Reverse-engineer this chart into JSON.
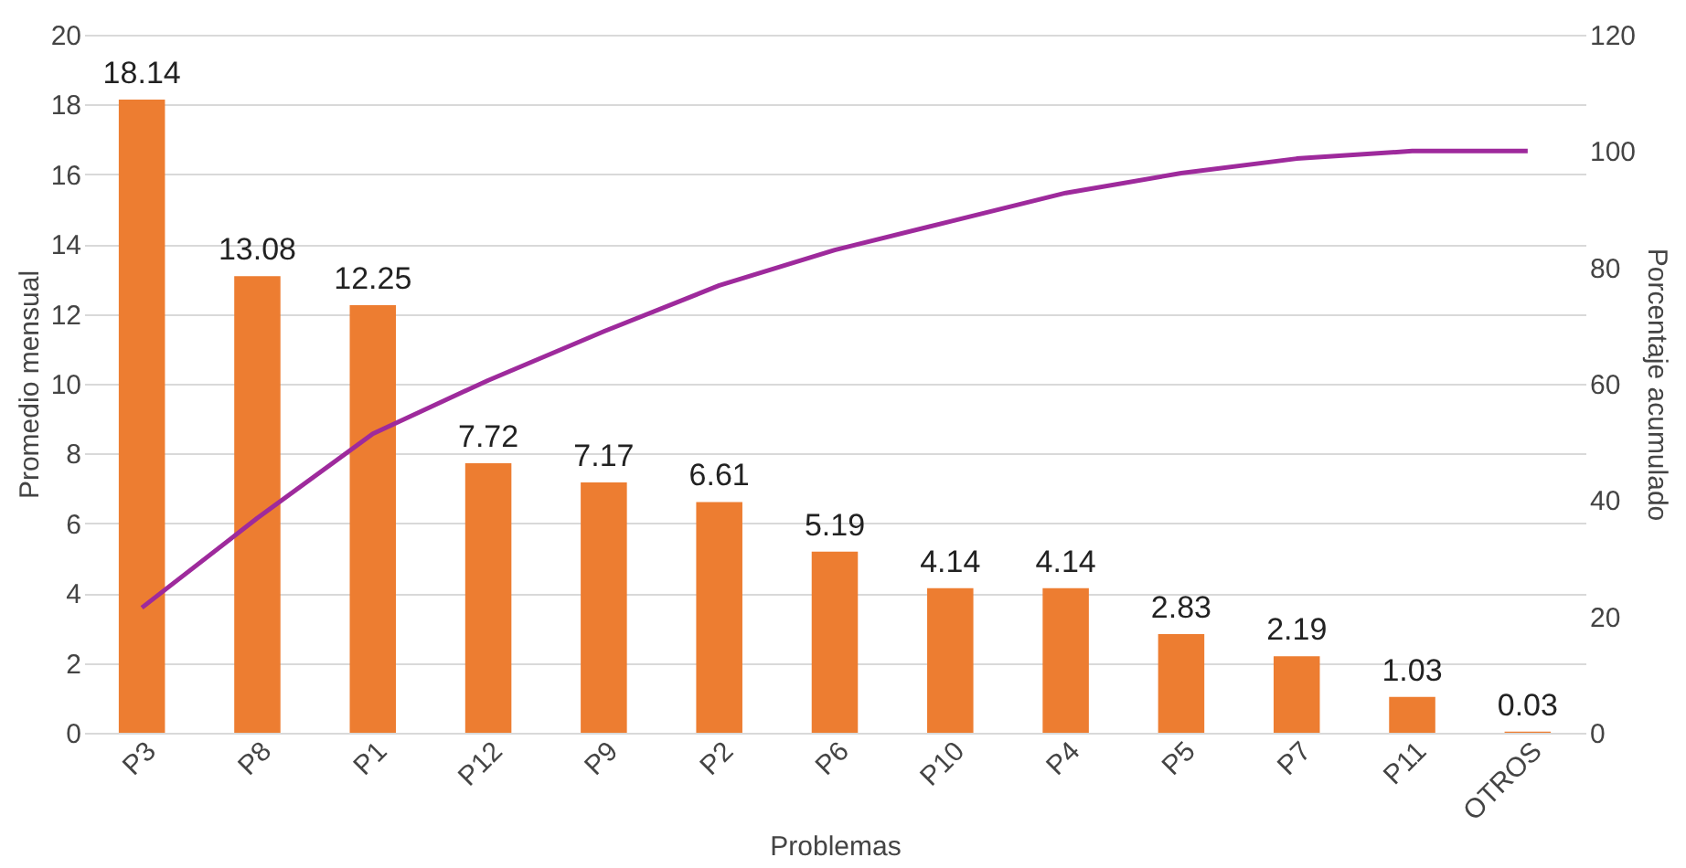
{
  "chart_data": {
    "type": "bar",
    "xlabel": "Problemas",
    "ylabel": "Promedio mensual",
    "y2label": "Porcentaje acumulado",
    "categories": [
      "P3",
      "P8",
      "P1",
      "P12",
      "P9",
      "P2",
      "P6",
      "P10",
      "P4",
      "P5",
      "P7",
      "P11",
      "OTROS"
    ],
    "series": [
      {
        "color": "#ed7d31",
        "values": [
          18.14,
          13.08,
          12.25,
          7.72,
          7.17,
          6.61,
          5.19,
          4.14,
          4.14,
          2.83,
          2.19,
          1.03,
          0.03
        ],
        "value_labels": [
          "18.14",
          "13.08",
          "12.25",
          "7.72",
          "7.17",
          "6.61",
          "5.19",
          "4.14",
          "4.14",
          "2.83",
          "2.19",
          "1.03",
          "0.03"
        ]
      },
      {
        "type": "line",
        "axis": "y2",
        "color": "#9e2a9c",
        "values": [
          21.5,
          36.9,
          51.4,
          60.6,
          69.0,
          76.9,
          83.0,
          87.9,
          92.8,
          96.2,
          98.7,
          100.0,
          100.0
        ]
      }
    ],
    "ylim": [
      0,
      20
    ],
    "yticks": [
      0,
      2,
      4,
      6,
      8,
      10,
      12,
      14,
      16,
      18,
      20
    ],
    "y2lim": [
      0,
      120
    ],
    "y2ticks": [
      0,
      20,
      40,
      60,
      80,
      100,
      120
    ],
    "grid": "y"
  }
}
